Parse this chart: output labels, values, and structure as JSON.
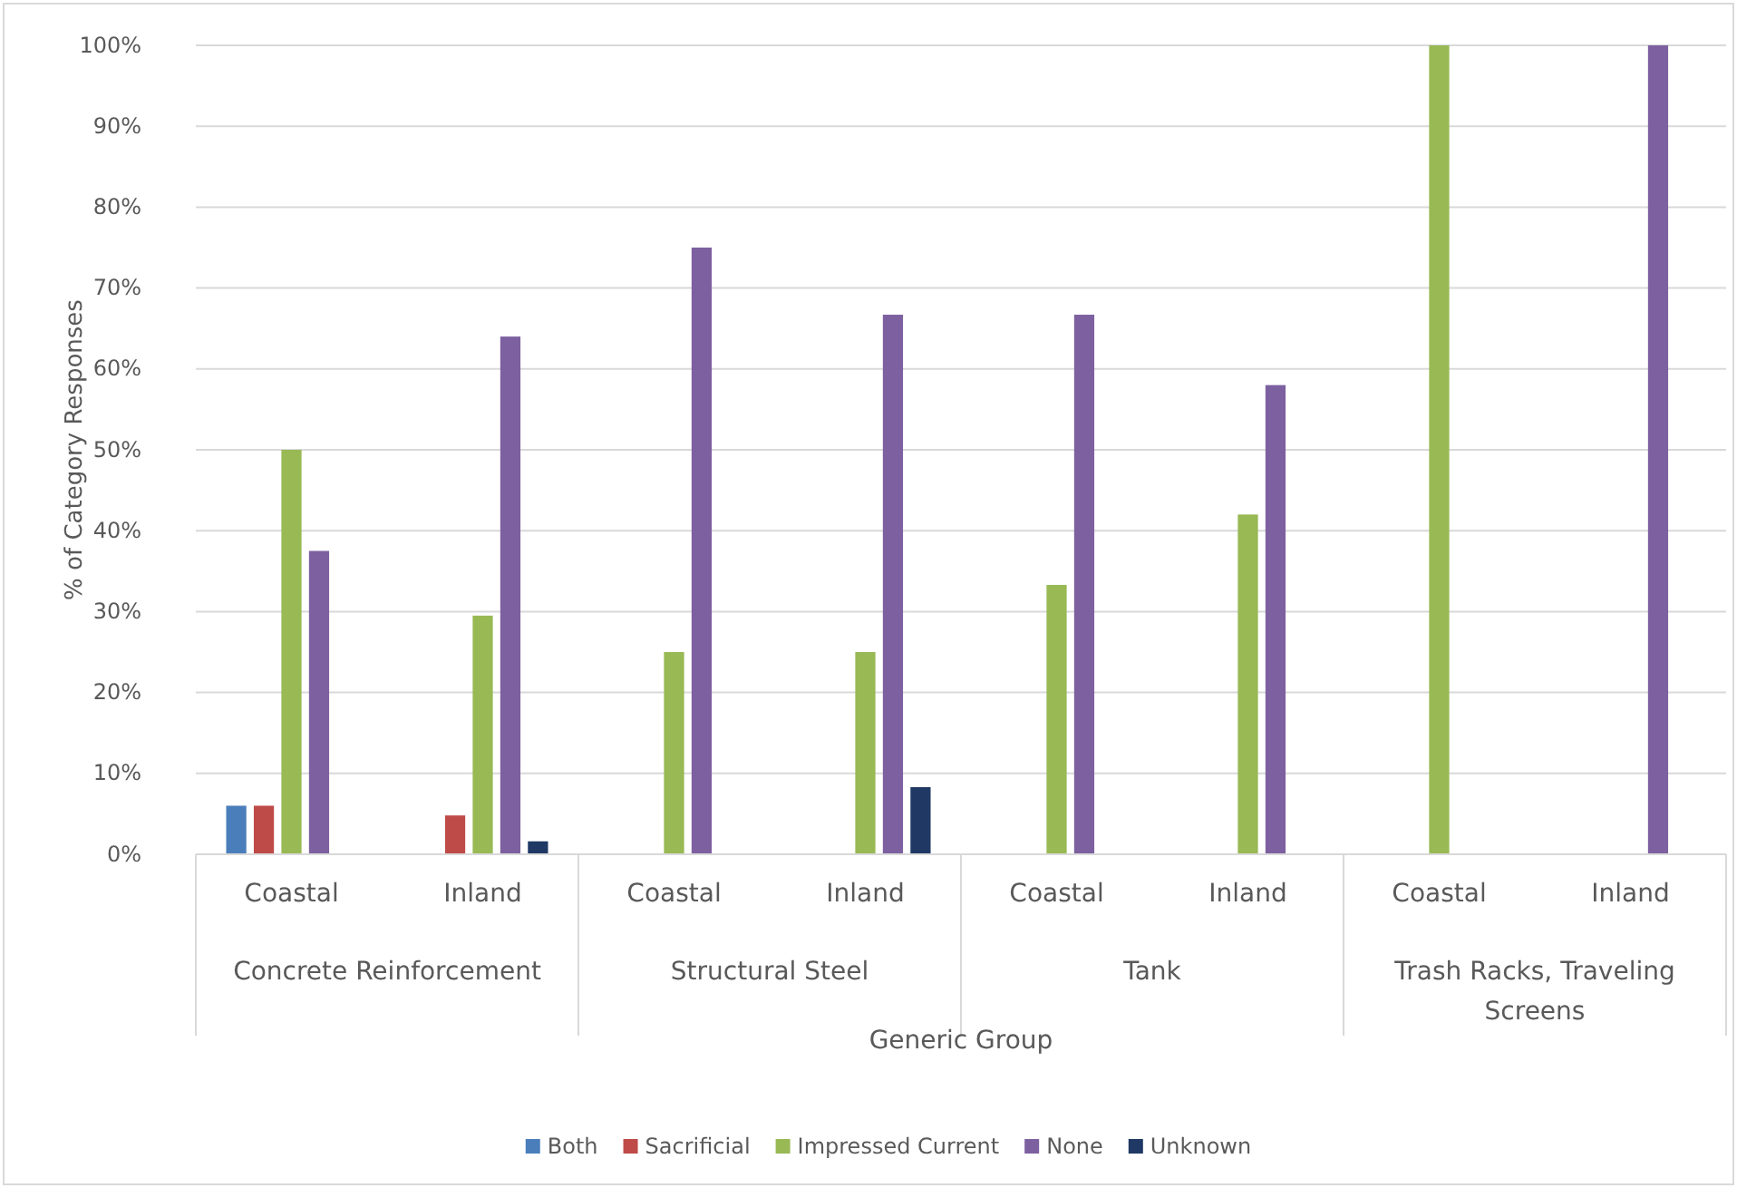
{
  "chart_data": {
    "type": "bar",
    "ylabel": "% of Category Responses",
    "xlabel": "Generic Group",
    "categories": [
      "Coastal",
      "Inland",
      "Coastal",
      "Inland",
      "Coastal",
      "Inland",
      "Coastal",
      "Inland"
    ],
    "annotations": [
      "Concrete Reinforcement",
      "Structural Steel",
      "Tank",
      "Trash Racks, Traveling Screens"
    ],
    "series": [
      {
        "name": "Both",
        "color": "#4a7ebb",
        "values": [
          6,
          null,
          null,
          null,
          null,
          null,
          null,
          null
        ]
      },
      {
        "name": "Sacrificial",
        "color": "#be4b48",
        "values": [
          6,
          4.8,
          null,
          null,
          null,
          null,
          null,
          null
        ]
      },
      {
        "name": "Impressed Current",
        "color": "#98b954",
        "values": [
          50,
          29.5,
          25,
          25,
          33.3,
          42,
          100,
          null
        ]
      },
      {
        "name": "None",
        "color": "#7d60a0",
        "values": [
          37.5,
          64,
          75,
          66.7,
          66.7,
          58,
          null,
          100
        ]
      },
      {
        "name": "Unknown",
        "color": "#1f3864",
        "values": [
          null,
          1.6,
          null,
          8.3,
          null,
          null,
          null,
          null
        ]
      }
    ],
    "ylim": [
      0,
      100
    ],
    "yticks": [
      {
        "value": 0,
        "label": "0%"
      },
      {
        "value": 10,
        "label": "10%"
      },
      {
        "value": 20,
        "label": "20%"
      },
      {
        "value": 30,
        "label": "30%"
      },
      {
        "value": 40,
        "label": "40%"
      },
      {
        "value": 50,
        "label": "50%"
      },
      {
        "value": 60,
        "label": "60%"
      },
      {
        "value": 70,
        "label": "70%"
      },
      {
        "value": 80,
        "label": "80%"
      },
      {
        "value": 90,
        "label": "90%"
      },
      {
        "value": 100,
        "label": "100%"
      }
    ],
    "grid": "y",
    "legend": "bottom"
  }
}
